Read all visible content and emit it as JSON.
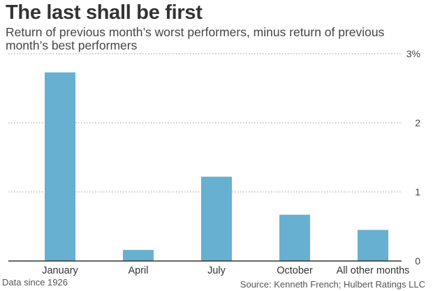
{
  "header": {
    "title": "The last shall be first",
    "subtitle": "Return of previous month’s worst performers, minus return of previous month’s best performers"
  },
  "footer": {
    "note": "Data since 1926",
    "source": "Source: Kenneth French; Hulbert Ratings LLC"
  },
  "colors": {
    "bar": "#67b0d1",
    "grid": "#999999",
    "axis": "#333333"
  },
  "chart_data": {
    "type": "bar",
    "title": "The last shall be first",
    "subtitle": "Return of previous month’s worst performers, minus return of previous month’s best performers",
    "categories": [
      "January",
      "April",
      "July",
      "October",
      "All other months"
    ],
    "values": [
      2.73,
      0.16,
      1.22,
      0.67,
      0.45
    ],
    "unit": "%",
    "ylim": [
      0,
      3
    ],
    "yticks": [
      0,
      1,
      2,
      3
    ],
    "ytick_labels": [
      "0",
      "1",
      "2",
      "3%"
    ],
    "y_axis_position": "right",
    "grid": true,
    "xlabel": "",
    "ylabel": ""
  }
}
